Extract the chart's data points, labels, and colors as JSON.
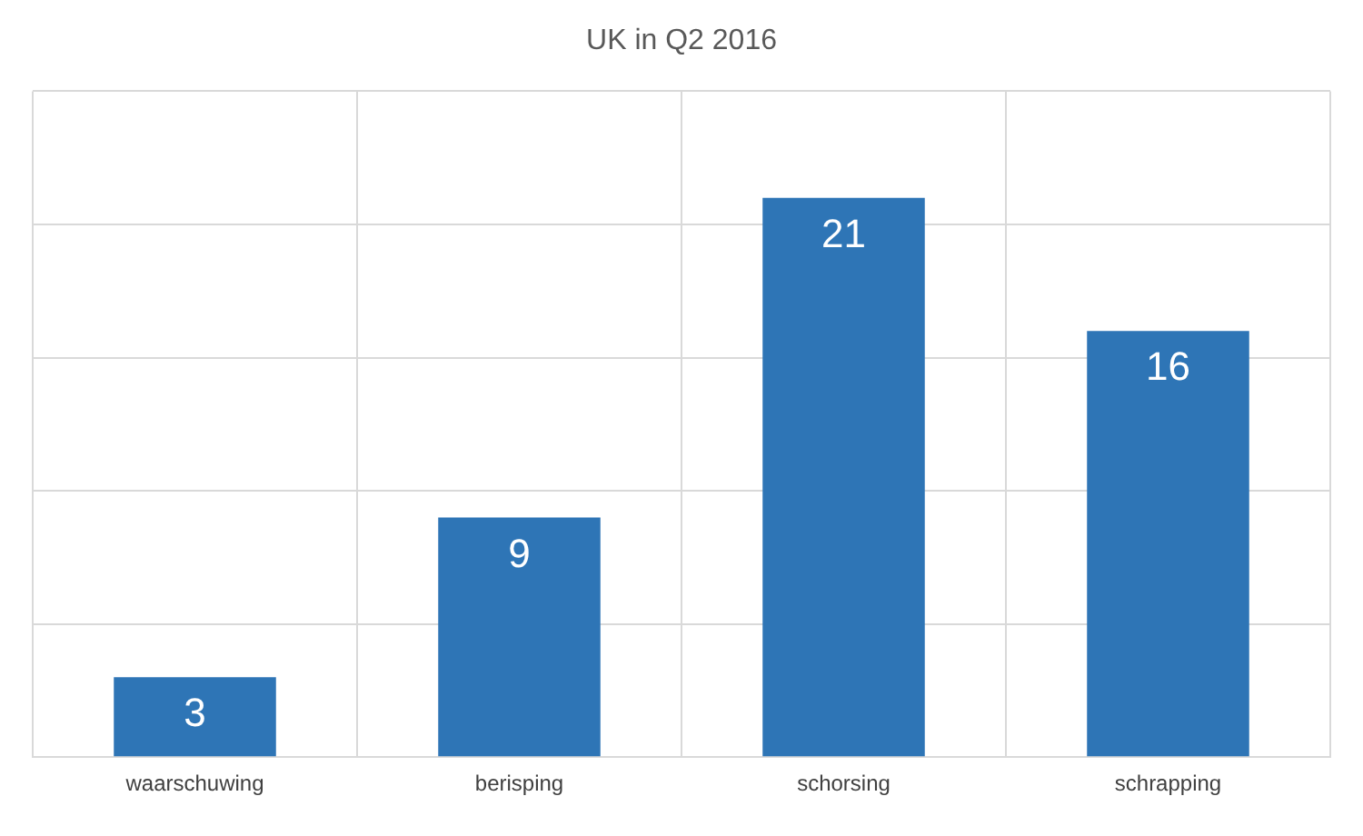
{
  "chart_data": {
    "type": "bar",
    "title": "UK in Q2 2016",
    "categories": [
      "waarschuwing",
      "berisping",
      "schorsing",
      "schrapping"
    ],
    "values": [
      3,
      9,
      21,
      16
    ],
    "color": "#2e75b6",
    "ylim": [
      0,
      25
    ],
    "yticks": [
      {
        "value": 0,
        "label": null
      },
      {
        "value": 5,
        "label": null
      },
      {
        "value": 10,
        "label": null
      },
      {
        "value": 15,
        "label": null
      },
      {
        "value": 20,
        "label": null
      },
      {
        "value": 25,
        "label": null
      }
    ],
    "tick_labels": "x",
    "grid": true,
    "data_labels": true,
    "legend": false
  }
}
